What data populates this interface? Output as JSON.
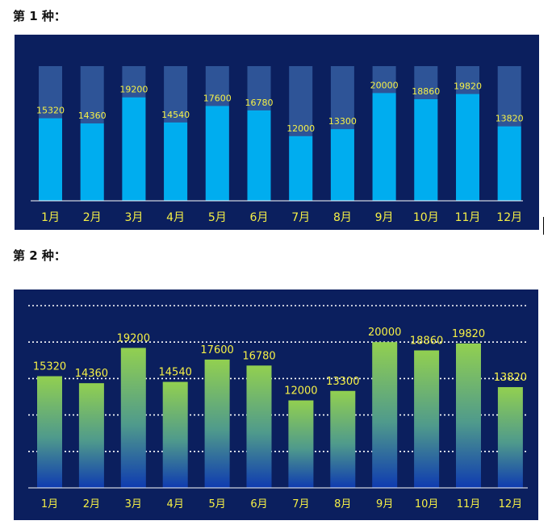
{
  "headings": [
    "第 1 种：",
    "第 2 种："
  ],
  "colors": {
    "panel_bg": "#0b1f5e",
    "label_yellow": "#f6f046",
    "bar_blue": "#00adef",
    "track_blue": "#2e5497",
    "gradient_top": "#92d050",
    "gradient_bottom": "#0f3bb0",
    "baseline": "#ffffff",
    "grid_dots": "#ffffff"
  },
  "chart_data": [
    {
      "type": "bar",
      "style": "bar with full-height background track",
      "categories": [
        "1月",
        "2月",
        "3月",
        "4月",
        "5月",
        "6月",
        "7月",
        "8月",
        "9月",
        "10月",
        "11月",
        "12月"
      ],
      "values": [
        15320,
        14360,
        19200,
        14540,
        17600,
        16780,
        12000,
        13300,
        20000,
        18860,
        19820,
        13820
      ],
      "ylim": [
        0,
        25000
      ],
      "data_labels": true,
      "grid": false,
      "legend": "none"
    },
    {
      "type": "bar",
      "style": "gradient bars with dotted horizontal gridlines",
      "categories": [
        "1月",
        "2月",
        "3月",
        "4月",
        "5月",
        "6月",
        "7月",
        "8月",
        "9月",
        "10月",
        "11月",
        "12月"
      ],
      "values": [
        15320,
        14360,
        19200,
        14540,
        17600,
        16780,
        12000,
        13300,
        20000,
        18860,
        19820,
        13820
      ],
      "ylim": [
        0,
        25000
      ],
      "data_labels": true,
      "grid": true,
      "legend": "none"
    }
  ]
}
